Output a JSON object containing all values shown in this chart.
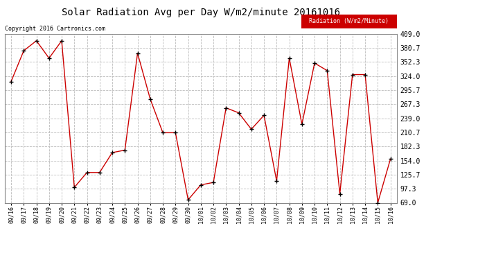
{
  "title": "Solar Radiation Avg per Day W/m2/minute 20161016",
  "copyright": "Copyright 2016 Cartronics.com",
  "legend_label": "Radiation (W/m2/Minute)",
  "legend_bg": "#cc0000",
  "legend_text_color": "#ffffff",
  "background_color": "#ffffff",
  "plot_bg": "#ffffff",
  "grid_color": "#bbbbbb",
  "line_color": "#cc0000",
  "marker_color": "#000000",
  "ylim": [
    69.0,
    409.0
  ],
  "yticks": [
    69.0,
    97.3,
    125.7,
    154.0,
    182.3,
    210.7,
    239.0,
    267.3,
    295.7,
    324.0,
    352.3,
    380.7,
    409.0
  ],
  "dates": [
    "09/16",
    "09/17",
    "09/18",
    "09/19",
    "09/20",
    "09/21",
    "09/22",
    "09/23",
    "09/24",
    "09/25",
    "09/26",
    "09/27",
    "09/28",
    "09/29",
    "09/30",
    "10/01",
    "10/02",
    "10/03",
    "10/04",
    "10/05",
    "10/06",
    "10/07",
    "10/08",
    "10/09",
    "10/10",
    "10/11",
    "10/12",
    "10/13",
    "10/14",
    "10/15",
    "10/16"
  ],
  "values": [
    313.0,
    375.0,
    395.0,
    360.0,
    395.0,
    100.0,
    130.0,
    130.0,
    170.0,
    175.0,
    370.0,
    278.0,
    210.0,
    210.0,
    75.0,
    105.0,
    110.0,
    260.0,
    250.0,
    217.0,
    245.0,
    113.0,
    360.0,
    227.0,
    350.0,
    335.0,
    87.0,
    327.0,
    327.0,
    69.0,
    157.0
  ],
  "title_fontsize": 10,
  "copyright_fontsize": 6,
  "tick_fontsize": 6,
  "ytick_fontsize": 7
}
